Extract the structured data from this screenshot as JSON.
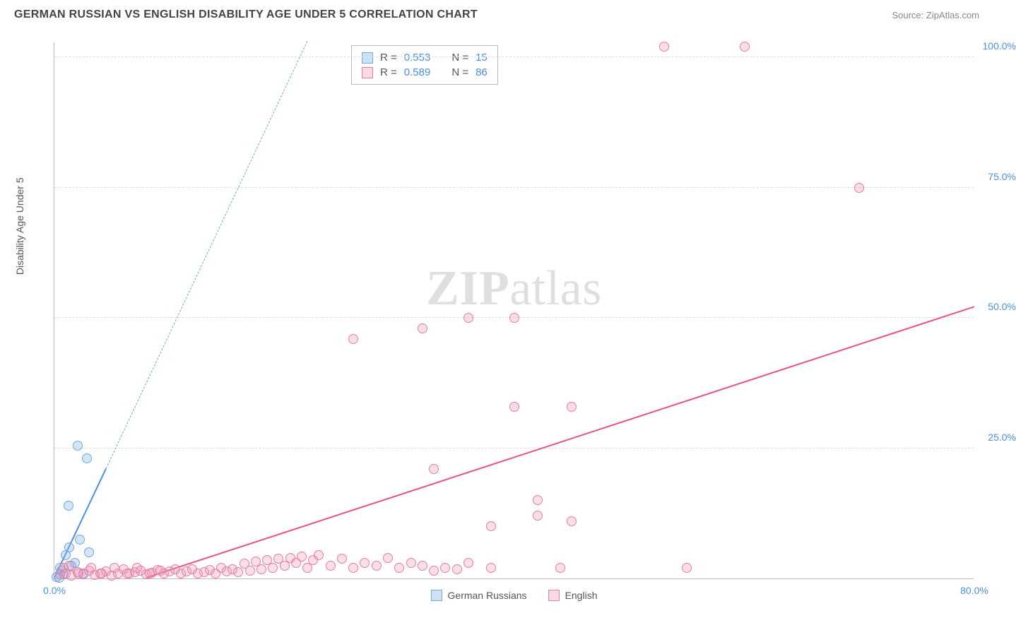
{
  "title": "GERMAN RUSSIAN VS ENGLISH DISABILITY AGE UNDER 5 CORRELATION CHART",
  "source": "Source: ZipAtlas.com",
  "watermark": "ZIPatlas",
  "y_axis_label": "Disability Age Under 5",
  "chart": {
    "type": "scatter",
    "xlim": [
      0,
      80
    ],
    "ylim": [
      0,
      103
    ],
    "x_ticks": [
      {
        "v": 0,
        "label": "0.0%"
      },
      {
        "v": 80,
        "label": "80.0%"
      }
    ],
    "y_ticks": [
      {
        "v": 25,
        "label": "25.0%"
      },
      {
        "v": 50,
        "label": "50.0%"
      },
      {
        "v": 75,
        "label": "75.0%"
      },
      {
        "v": 100,
        "label": "100.0%"
      }
    ],
    "colors": {
      "blue_dot_fill": "rgba(135,180,235,0.35)",
      "blue_dot_border": "#6fa8dc",
      "pink_dot_fill": "rgba(240,150,180,0.3)",
      "pink_dot_border": "#e97ca3",
      "blue_line": "#4a90e2",
      "pink_line": "#e9537e",
      "axis_label": "#4a90e2",
      "grid": "#dddddd"
    },
    "marker_size": 14,
    "series": [
      {
        "name": "German Russians",
        "color_key": "blue",
        "R": "0.553",
        "N": "15",
        "points": [
          [
            0.2,
            0.3
          ],
          [
            0.4,
            0.2
          ],
          [
            0.6,
            1.5
          ],
          [
            0.8,
            0.8
          ],
          [
            1.0,
            4.5
          ],
          [
            1.2,
            14.0
          ],
          [
            1.5,
            2.5
          ],
          [
            1.8,
            3.0
          ],
          [
            2.0,
            25.5
          ],
          [
            2.2,
            7.5
          ],
          [
            2.5,
            1.0
          ],
          [
            2.8,
            23.0
          ],
          [
            3.0,
            5.0
          ],
          [
            1.3,
            6.0
          ],
          [
            0.5,
            2.0
          ]
        ],
        "trend_solid": {
          "x1": 0,
          "y1": 0,
          "x2": 4.5,
          "y2": 21
        },
        "trend_dashed": {
          "x1": 4.5,
          "y1": 21,
          "x2": 22,
          "y2": 103
        }
      },
      {
        "name": "English",
        "color_key": "pink",
        "R": "0.589",
        "N": "86",
        "points": [
          [
            0.5,
            0.8
          ],
          [
            1,
            1.0
          ],
          [
            1.5,
            0.5
          ],
          [
            2,
            1.2
          ],
          [
            2.5,
            0.8
          ],
          [
            3,
            1.5
          ],
          [
            3.5,
            0.7
          ],
          [
            4,
            1.0
          ],
          [
            4.5,
            1.3
          ],
          [
            5,
            0.6
          ],
          [
            5.5,
            1.0
          ],
          [
            6,
            1.8
          ],
          [
            6.5,
            0.9
          ],
          [
            7,
            1.2
          ],
          [
            7.5,
            1.5
          ],
          [
            8,
            0.8
          ],
          [
            8.5,
            1.1
          ],
          [
            9,
            1.6
          ],
          [
            9.5,
            0.9
          ],
          [
            10,
            1.3
          ],
          [
            10.5,
            1.7
          ],
          [
            11,
            1.0
          ],
          [
            11.5,
            1.4
          ],
          [
            12,
            1.8
          ],
          [
            12.5,
            0.9
          ],
          [
            13,
            1.2
          ],
          [
            13.5,
            1.6
          ],
          [
            14,
            1.0
          ],
          [
            14.5,
            2.0
          ],
          [
            15,
            1.3
          ],
          [
            15.5,
            1.7
          ],
          [
            16,
            1.2
          ],
          [
            16.5,
            2.8
          ],
          [
            17,
            1.5
          ],
          [
            17.5,
            3.2
          ],
          [
            18,
            1.8
          ],
          [
            18.5,
            3.5
          ],
          [
            19,
            2.0
          ],
          [
            19.5,
            3.8
          ],
          [
            20,
            2.5
          ],
          [
            20.5,
            4.0
          ],
          [
            21,
            3.0
          ],
          [
            21.5,
            4.2
          ],
          [
            22,
            2.0
          ],
          [
            22.5,
            3.5
          ],
          [
            23,
            4.5
          ],
          [
            24,
            2.5
          ],
          [
            25,
            3.8
          ],
          [
            26,
            2.0
          ],
          [
            27,
            3.0
          ],
          [
            28,
            2.5
          ],
          [
            29,
            4.0
          ],
          [
            30,
            2.0
          ],
          [
            31,
            3.0
          ],
          [
            32,
            2.5
          ],
          [
            33,
            1.5
          ],
          [
            34,
            2.0
          ],
          [
            35,
            1.8
          ],
          [
            36,
            3.0
          ],
          [
            38,
            2.0
          ],
          [
            26,
            46.0
          ],
          [
            32,
            48.0
          ],
          [
            33,
            21.0
          ],
          [
            36,
            50.0
          ],
          [
            38,
            10.0
          ],
          [
            40,
            50.0
          ],
          [
            40,
            33.0
          ],
          [
            42,
            12.0
          ],
          [
            42,
            15.0
          ],
          [
            45,
            33.0
          ],
          [
            45,
            11.0
          ],
          [
            44,
            2.0
          ],
          [
            53,
            102.0
          ],
          [
            55,
            2.0
          ],
          [
            60,
            102.0
          ],
          [
            70,
            75.0
          ],
          [
            0.8,
            2.0
          ],
          [
            1.3,
            2.5
          ],
          [
            2.1,
            1.0
          ],
          [
            3.2,
            2.0
          ],
          [
            4.1,
            1.0
          ],
          [
            5.2,
            2.0
          ],
          [
            6.3,
            1.0
          ],
          [
            7.2,
            2.0
          ],
          [
            8.3,
            1.0
          ],
          [
            9.2,
            1.5
          ]
        ],
        "trend_solid": {
          "x1": 8,
          "y1": 0,
          "x2": 80,
          "y2": 52
        }
      }
    ]
  },
  "stats_box_labels": {
    "R": "R =",
    "N": "N ="
  },
  "legend": [
    "German Russians",
    "English"
  ]
}
